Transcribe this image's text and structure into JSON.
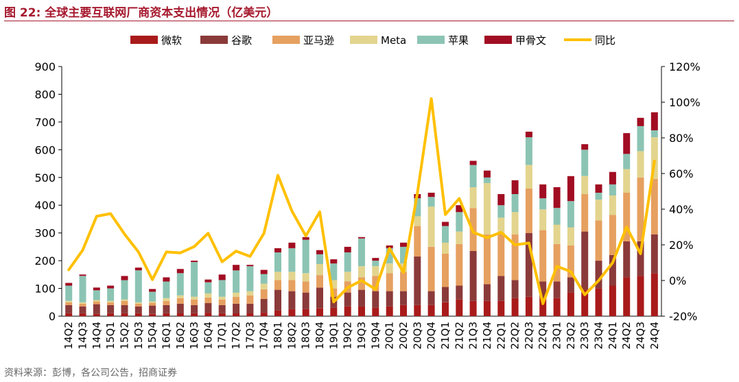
{
  "figure": {
    "title": "图 22:  全球主要互联网厂商资本支出情况（亿美元）",
    "source": "资料来源：彭博，各公司公告，招商证券"
  },
  "chart_data": {
    "type": "bar",
    "stacked": true,
    "categories": [
      "14Q2",
      "14Q3",
      "14Q4",
      "15Q1",
      "15Q2",
      "15Q3",
      "15Q4",
      "16Q1",
      "16Q2",
      "16Q3",
      "16Q4",
      "17Q1",
      "17Q2",
      "17Q3",
      "17Q4",
      "18Q1",
      "18Q2",
      "18Q3",
      "18Q4",
      "19Q1",
      "19Q2",
      "19Q3",
      "19Q4",
      "20Q1",
      "20Q2",
      "20Q3",
      "20Q4",
      "21Q1",
      "21Q2",
      "21Q3",
      "21Q4",
      "22Q1",
      "22Q2",
      "22Q3",
      "22Q4",
      "23Q1",
      "23Q2",
      "23Q3",
      "23Q4",
      "24Q1",
      "24Q2",
      "24Q3",
      "24Q4"
    ],
    "series": [
      {
        "name": "微软",
        "color": "#a91b1b",
        "axis": "left",
        "values": [
          10,
          10,
          8,
          10,
          10,
          10,
          8,
          10,
          10,
          10,
          12,
          10,
          10,
          10,
          12,
          20,
          25,
          25,
          28,
          30,
          35,
          35,
          30,
          35,
          40,
          40,
          40,
          50,
          60,
          55,
          55,
          55,
          65,
          70,
          65,
          65,
          85,
          95,
          100,
          110,
          140,
          145,
          155
        ]
      },
      {
        "name": "谷歌",
        "color": "#8b3a3a",
        "axis": "left",
        "values": [
          30,
          25,
          35,
          30,
          30,
          25,
          30,
          30,
          35,
          30,
          35,
          30,
          35,
          35,
          50,
          75,
          65,
          60,
          75,
          40,
          50,
          60,
          60,
          55,
          50,
          175,
          50,
          55,
          50,
          180,
          60,
          90,
          65,
          230,
          60,
          60,
          55,
          210,
          100,
          110,
          130,
          125,
          140
        ]
      },
      {
        "name": "亚马逊",
        "color": "#e6a060",
        "axis": "left",
        "values": [
          10,
          10,
          10,
          10,
          15,
          10,
          10,
          15,
          20,
          20,
          20,
          20,
          25,
          30,
          35,
          35,
          40,
          40,
          45,
          30,
          40,
          45,
          55,
          65,
          70,
          110,
          160,
          120,
          150,
          155,
          180,
          155,
          165,
          160,
          185,
          135,
          115,
          135,
          145,
          145,
          175,
          230,
          200
        ]
      },
      {
        "name": "Meta",
        "color": "#e3d48e",
        "axis": "left",
        "values": [
          5,
          5,
          5,
          5,
          5,
          5,
          5,
          10,
          10,
          10,
          15,
          10,
          15,
          15,
          20,
          30,
          30,
          30,
          40,
          30,
          35,
          40,
          35,
          35,
          30,
          35,
          145,
          40,
          45,
          75,
          185,
          55,
          80,
          85,
          75,
          70,
          65,
          65,
          75,
          70,
          85,
          95,
          150
        ]
      },
      {
        "name": "苹果",
        "color": "#8cc4b4",
        "axis": "left",
        "values": [
          55,
          95,
          35,
          45,
          70,
          115,
          35,
          60,
          80,
          125,
          40,
          60,
          80,
          90,
          35,
          70,
          85,
          120,
          35,
          60,
          70,
          100,
          20,
          55,
          60,
          65,
          35,
          60,
          70,
          80,
          20,
          45,
          65,
          100,
          40,
          60,
          95,
          95,
          25,
          40,
          55,
          90,
          25
        ]
      },
      {
        "name": "甲骨文",
        "color": "#a10d22",
        "axis": "left",
        "values": [
          10,
          5,
          10,
          10,
          15,
          10,
          10,
          15,
          15,
          5,
          10,
          20,
          20,
          5,
          15,
          15,
          20,
          10,
          15,
          15,
          20,
          5,
          10,
          10,
          15,
          15,
          15,
          15,
          25,
          15,
          25,
          40,
          50,
          20,
          50,
          75,
          90,
          20,
          30,
          45,
          75,
          30,
          65
        ]
      }
    ],
    "line": {
      "name": "同比",
      "color": "#ffc000",
      "axis": "right",
      "values": [
        6,
        17,
        36,
        37.5,
        26,
        16,
        0.5,
        16,
        15.5,
        19,
        26.5,
        10.5,
        16.5,
        13.5,
        26.5,
        59,
        39,
        25,
        38.5,
        -12,
        -4,
        0,
        -5,
        18,
        4.5,
        49,
        102,
        37,
        46,
        27,
        24,
        27,
        20,
        21,
        -13,
        8,
        5,
        -8,
        0,
        10,
        30,
        15,
        67
      ]
    },
    "y_left": {
      "min": 0,
      "max": 900,
      "ticks": [
        "0",
        "100",
        "200",
        "300",
        "400",
        "500",
        "600",
        "700",
        "800",
        "900"
      ]
    },
    "y_right": {
      "min": -20,
      "max": 120,
      "ticks": [
        "-20%",
        "0%",
        "20%",
        "40%",
        "60%",
        "80%",
        "100%",
        "120%"
      ]
    },
    "legend": {
      "position": "top"
    }
  }
}
